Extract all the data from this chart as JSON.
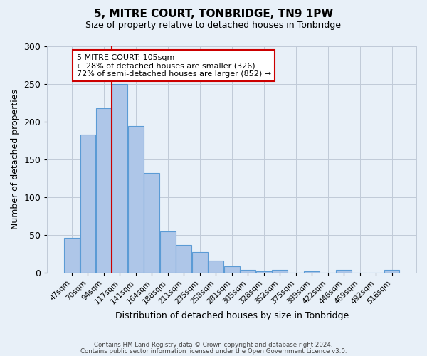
{
  "title": "5, MITRE COURT, TONBRIDGE, TN9 1PW",
  "subtitle": "Size of property relative to detached houses in Tonbridge",
  "xlabel": "Distribution of detached houses by size in Tonbridge",
  "ylabel": "Number of detached properties",
  "bar_values": [
    46,
    183,
    218,
    250,
    194,
    132,
    55,
    37,
    27,
    16,
    8,
    4,
    2,
    4,
    0,
    2,
    0,
    4,
    0,
    0,
    4
  ],
  "x_tick_labels": [
    "47sqm",
    "70sqm",
    "94sqm",
    "117sqm",
    "141sqm",
    "164sqm",
    "188sqm",
    "211sqm",
    "235sqm",
    "258sqm",
    "281sqm",
    "305sqm",
    "328sqm",
    "352sqm",
    "375sqm",
    "399sqm",
    "422sqm",
    "446sqm",
    "469sqm",
    "492sqm",
    "516sqm"
  ],
  "ylim": [
    0,
    300
  ],
  "yticks": [
    0,
    50,
    100,
    150,
    200,
    250,
    300
  ],
  "bar_color": "#aec6e8",
  "bar_edge_color": "#5b9bd5",
  "vline_color": "#cc0000",
  "vline_x": 2.5,
  "annotation_text": "5 MITRE COURT: 105sqm\n← 28% of detached houses are smaller (326)\n72% of semi-detached houses are larger (852) →",
  "annotation_box_color": "#ffffff",
  "annotation_box_edge": "#cc0000",
  "footer_line1": "Contains HM Land Registry data © Crown copyright and database right 2024.",
  "footer_line2": "Contains public sector information licensed under the Open Government Licence v3.0.",
  "bg_color": "#e8f0f8",
  "plot_bg_color": "#e8f0f8",
  "grid_color": "#c0cad8"
}
